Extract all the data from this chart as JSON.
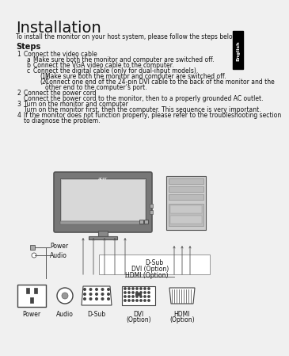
{
  "title": "Installation",
  "subtitle": "To install the monitor on your host system, please follow the steps below:",
  "steps_header": "Steps",
  "steps": [
    {
      "num": "1",
      "text": "Connect the video cable",
      "sub": [
        {
          "letter": "a",
          "text": "Make sure both the monitor and computer are switched off."
        },
        {
          "letter": "b",
          "text": "Connect the VGA video cable to the computer."
        },
        {
          "letter": "c",
          "text": "Connect the digital cable (only for dual-input models).",
          "subsub": [
            {
              "num": "(1)",
              "text": "Make sure both the monitor and computer are switched off."
            },
            {
              "num": "(2)",
              "text": "Connect one end of the 24-pin DVI cable to the back of the monitor and the other end to the computer’s port."
            }
          ]
        }
      ]
    },
    {
      "num": "2",
      "text": "Connect the power cord",
      "desc": "Connect the power cord to the monitor, then to a properly grounded AC outlet."
    },
    {
      "num": "3",
      "text": "Turn on the monitor and computer",
      "desc": "Turn on the monitor first, then the computer. This sequence is very important."
    },
    {
      "num": "4",
      "text": "If the monitor does not function properly, please refer to the troubleshooting section to diagnose the problem."
    }
  ],
  "tab_label": "English",
  "tab_bg": "#000000",
  "tab_fg": "#ffffff",
  "bg_color": "#f0f0f0",
  "text_color": "#111111",
  "page_bg": "#ffffff"
}
